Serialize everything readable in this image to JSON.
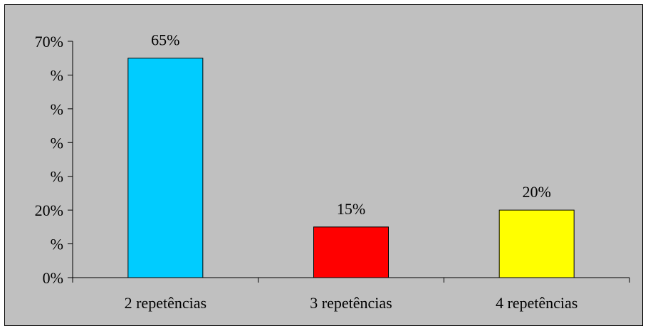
{
  "chart_data": {
    "type": "bar",
    "categories": [
      "2 repetências",
      "3 repetências",
      "4 repetências"
    ],
    "values": [
      65,
      15,
      20
    ],
    "data_labels": [
      "65%",
      "15%",
      "20%"
    ],
    "colors": [
      "#00ccff",
      "#ff0000",
      "#ffff00"
    ],
    "y_tick_labels": [
      "0%",
      "%",
      "20%",
      "%",
      "%",
      "%",
      "%",
      "70%"
    ],
    "ylim": [
      0,
      70
    ],
    "grid": false,
    "legend": "none",
    "background": "#c0c0c0"
  }
}
